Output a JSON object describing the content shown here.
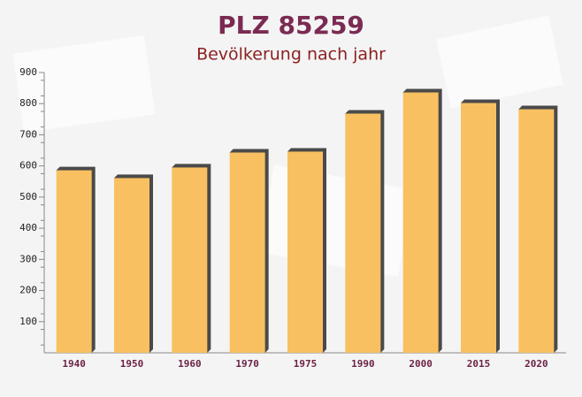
{
  "chart_data": {
    "type": "bar",
    "title": "PLZ 85259",
    "subtitle": "Bevölkerung nach jahr",
    "categories": [
      "1940",
      "1950",
      "1960",
      "1970",
      "1975",
      "1990",
      "2000",
      "2015",
      "2020"
    ],
    "values": [
      586,
      561,
      595,
      643,
      646,
      768,
      836,
      802,
      782
    ],
    "color": "#f8c060",
    "ylim": [
      0,
      900
    ],
    "yticks": [
      100,
      200,
      300,
      400,
      500,
      600,
      700,
      800,
      900
    ]
  }
}
